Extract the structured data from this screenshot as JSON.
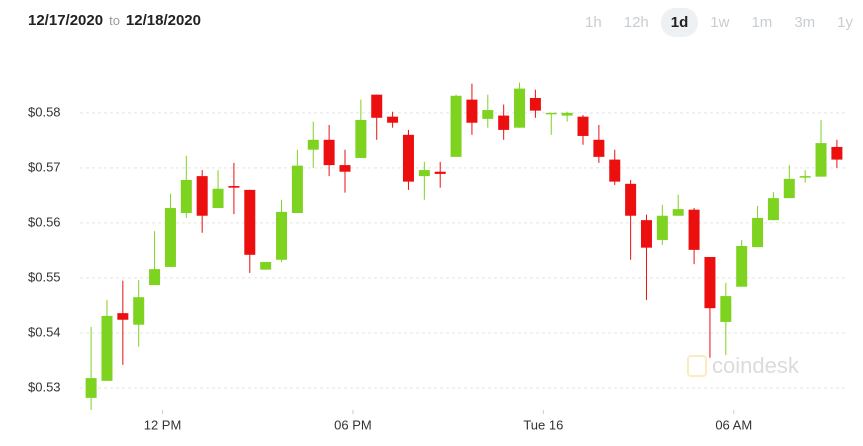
{
  "date_range": {
    "from": "12/17/2020",
    "separator": "to",
    "to": "12/18/2020"
  },
  "ranges": [
    "1h",
    "12h",
    "1d",
    "1w",
    "1m",
    "3m",
    "1y"
  ],
  "active_range": 2,
  "chart_data": {
    "type": "candlestick",
    "watermark": "coindesk",
    "up_color": "#7ed321",
    "down_color": "#ec0f0f",
    "grid": true,
    "xlim": [
      9.4,
      33.6
    ],
    "ylim": [
      0.526,
      0.5896
    ],
    "xticks": [
      {
        "value": 12,
        "label": "12 PM"
      },
      {
        "value": 18,
        "label": "06 PM"
      },
      {
        "value": 24,
        "label": "Tue 16"
      },
      {
        "value": 30,
        "label": "06 AM"
      }
    ],
    "yticks": [
      {
        "value": 0.53,
        "label": "$0.53"
      },
      {
        "value": 0.54,
        "label": "$0.54"
      },
      {
        "value": 0.55,
        "label": "$0.55"
      },
      {
        "value": 0.56,
        "label": "$0.56"
      },
      {
        "value": 0.57,
        "label": "$0.57"
      },
      {
        "value": 0.58,
        "label": "$0.58"
      }
    ],
    "x": [
      9.75,
      10.25,
      10.75,
      11.25,
      11.75,
      12.25,
      12.75,
      13.25,
      13.75,
      14.25,
      14.75,
      15.25,
      15.75,
      16.25,
      16.75,
      17.25,
      17.75,
      18.25,
      18.75,
      19.25,
      19.75,
      20.25,
      20.75,
      21.25,
      21.75,
      22.25,
      22.75,
      23.25,
      23.75,
      24.25,
      24.75,
      25.25,
      25.75,
      26.25,
      26.75,
      27.25,
      27.75,
      28.25,
      28.75,
      29.25,
      29.75,
      30.25,
      30.75,
      31.25,
      31.75,
      32.25,
      32.75,
      33.25
    ],
    "open": [
      0.5282,
      0.5313,
      0.5436,
      0.5415,
      0.5487,
      0.552,
      0.5618,
      0.5685,
      0.5627,
      0.5667,
      0.566,
      0.5515,
      0.5533,
      0.5618,
      0.5733,
      0.5751,
      0.5705,
      0.5718,
      0.5833,
      0.5793,
      0.576,
      0.5685,
      0.5693,
      0.572,
      0.5824,
      0.5789,
      0.5795,
      0.5773,
      0.5827,
      0.58,
      0.5795,
      0.5793,
      0.5751,
      0.5715,
      0.5671,
      0.5605,
      0.5569,
      0.5613,
      0.5624,
      0.5538,
      0.542,
      0.5484,
      0.5556,
      0.5605,
      0.5645,
      0.5684,
      0.5684,
      0.5738
    ],
    "high": [
      0.5411,
      0.546,
      0.5495,
      0.5496,
      0.5585,
      0.5653,
      0.5722,
      0.5696,
      0.5696,
      0.5709,
      0.566,
      0.5529,
      0.5642,
      0.5733,
      0.5784,
      0.5778,
      0.5733,
      0.5824,
      0.5833,
      0.5802,
      0.5769,
      0.5711,
      0.5711,
      0.5833,
      0.5853,
      0.5833,
      0.5815,
      0.5855,
      0.5842,
      0.58,
      0.5802,
      0.5796,
      0.5778,
      0.5733,
      0.5678,
      0.5615,
      0.5633,
      0.5651,
      0.5627,
      0.5538,
      0.5491,
      0.5569,
      0.5631,
      0.5656,
      0.5705,
      0.5696,
      0.5787,
      0.5751
    ],
    "low": [
      0.526,
      0.5313,
      0.5342,
      0.5375,
      0.5487,
      0.552,
      0.5609,
      0.5582,
      0.5627,
      0.5616,
      0.5509,
      0.5515,
      0.5529,
      0.5618,
      0.57,
      0.5685,
      0.5655,
      0.5718,
      0.5751,
      0.5773,
      0.566,
      0.5642,
      0.5664,
      0.572,
      0.576,
      0.5773,
      0.5751,
      0.5773,
      0.5791,
      0.576,
      0.5784,
      0.5742,
      0.5709,
      0.5669,
      0.5533,
      0.546,
      0.556,
      0.5613,
      0.5525,
      0.5355,
      0.536,
      0.5484,
      0.5556,
      0.5605,
      0.5645,
      0.5673,
      0.5684,
      0.57
    ],
    "close": [
      0.5318,
      0.5431,
      0.5424,
      0.5465,
      0.5516,
      0.5627,
      0.5678,
      0.5613,
      0.5662,
      0.5664,
      0.5542,
      0.5529,
      0.562,
      0.5704,
      0.5751,
      0.5705,
      0.5693,
      0.5787,
      0.5791,
      0.5782,
      0.5675,
      0.5696,
      0.5689,
      0.5831,
      0.5782,
      0.5805,
      0.5769,
      0.5844,
      0.5804,
      0.58,
      0.58,
      0.5758,
      0.572,
      0.5675,
      0.5613,
      0.5555,
      0.5613,
      0.5625,
      0.5551,
      0.5445,
      0.5467,
      0.5558,
      0.5609,
      0.5645,
      0.568,
      0.5685,
      0.5745,
      0.5715
    ]
  }
}
